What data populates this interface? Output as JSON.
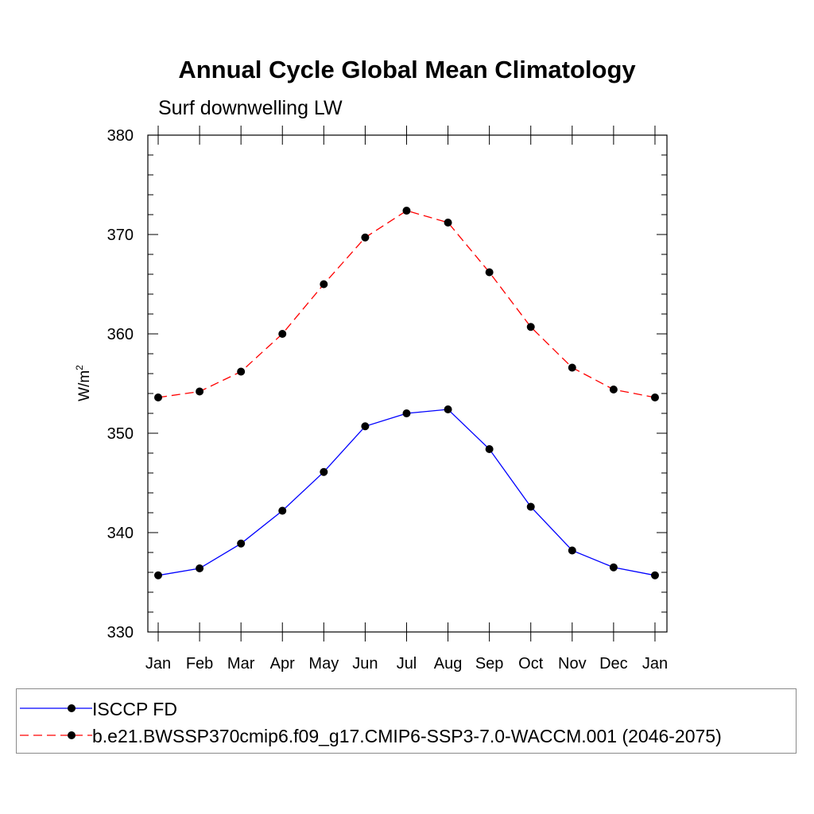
{
  "chart_data": {
    "type": "line",
    "title": "Annual Cycle Global Mean Climatology",
    "subtitle": "Surf downwelling LW",
    "ylabel": "W/m",
    "ylabel_sup": "2",
    "xlabel": "",
    "categories": [
      "Jan",
      "Feb",
      "Mar",
      "Apr",
      "May",
      "Jun",
      "Jul",
      "Aug",
      "Sep",
      "Oct",
      "Nov",
      "Dec",
      "Jan"
    ],
    "ylim": [
      330,
      380
    ],
    "yticks": [
      330,
      340,
      350,
      360,
      370,
      380
    ],
    "grid": false,
    "legend_position": "bottom",
    "series": [
      {
        "name": "ISCCP FD",
        "color": "#0000ff",
        "dash": "solid",
        "marker": "filled-circle",
        "values": [
          335.7,
          336.4,
          338.9,
          342.2,
          346.1,
          350.7,
          352.0,
          352.4,
          348.4,
          342.6,
          338.2,
          336.5,
          335.7
        ]
      },
      {
        "name": "b.e21.BWSSP370cmip6.f09_g17.CMIP6-SSP3-7.0-WACCM.001 (2046-2075)",
        "color": "#ff0000",
        "dash": "dashed",
        "marker": "filled-circle",
        "values": [
          353.6,
          354.2,
          356.2,
          360.0,
          365.0,
          369.7,
          372.4,
          371.2,
          366.2,
          360.7,
          356.6,
          354.4,
          353.6
        ]
      }
    ]
  }
}
